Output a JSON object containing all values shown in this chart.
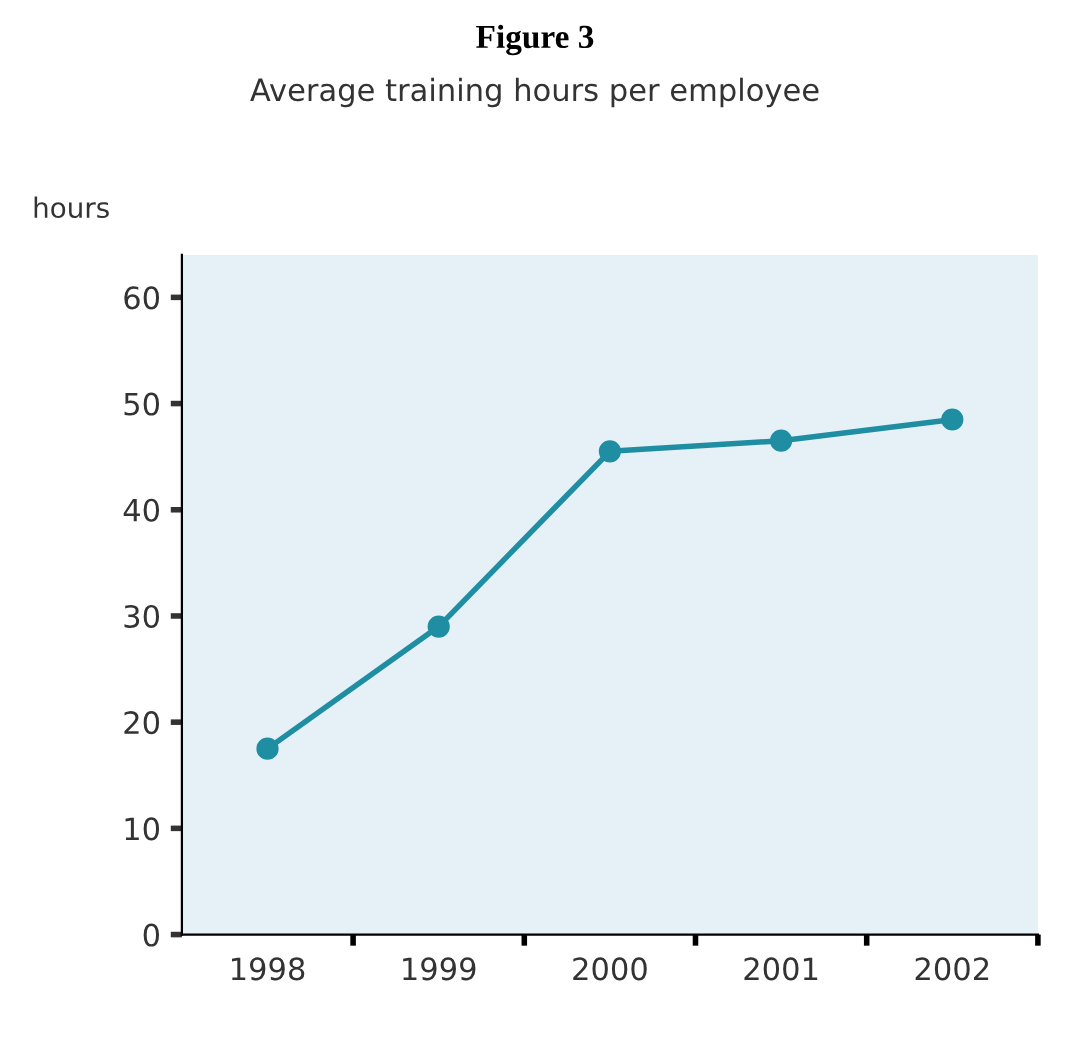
{
  "chart_data": {
    "type": "line",
    "title": "Figure 3",
    "subtitle": "Average training hours per employee",
    "ylabel": "hours",
    "categories": [
      "1998",
      "1999",
      "2000",
      "2001",
      "2002"
    ],
    "series": [
      {
        "color": "#1f8ea3",
        "values": [
          17.5,
          29,
          45.5,
          46.5,
          48.5
        ]
      }
    ],
    "ylim": [
      0,
      64
    ],
    "yticks": [
      0,
      10,
      20,
      30,
      40,
      50,
      60
    ],
    "grid": false,
    "legend": false,
    "marker": "circle",
    "line_style": "solid"
  }
}
